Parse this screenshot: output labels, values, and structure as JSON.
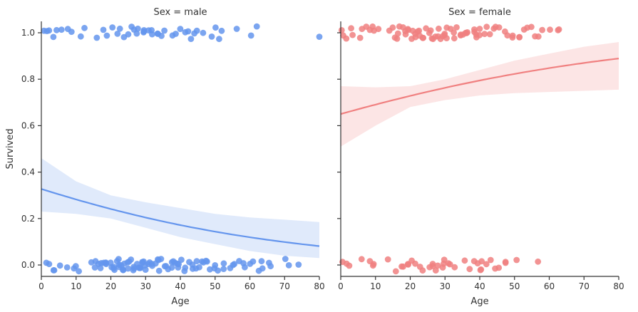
{
  "chart_data": {
    "type": "scatter",
    "ylabel": "Survived",
    "xlabel": "Age",
    "xlim": [
      0,
      80
    ],
    "ylim": [
      -0.05,
      1.05
    ],
    "xticks": [
      0,
      10,
      20,
      30,
      40,
      50,
      60,
      70,
      80
    ],
    "yticks": [
      0.0,
      0.2,
      0.4,
      0.6,
      0.8,
      1.0
    ],
    "ytick_labels": [
      "0.0",
      "0.2",
      "0.4",
      "0.6",
      "0.8",
      "1.0"
    ],
    "grid": false,
    "facets": [
      {
        "title": "Sex = male",
        "color": "#6495ED",
        "band_color": "#dbe6fa",
        "fit": {
          "intercept": -0.72,
          "slope": -0.0213
        },
        "band": {
          "x": [
            0,
            10,
            20,
            30,
            40,
            50,
            60,
            70,
            80
          ],
          "lower": [
            0.23,
            0.22,
            0.2,
            0.16,
            0.12,
            0.09,
            0.06,
            0.04,
            0.03
          ],
          "upper": [
            0.46,
            0.36,
            0.3,
            0.27,
            0.245,
            0.22,
            0.205,
            0.195,
            0.185
          ]
        },
        "survived_ages": [
          1,
          1,
          2,
          3,
          4,
          6,
          8,
          9,
          11,
          12,
          16,
          18,
          19,
          20,
          22,
          23,
          24,
          25,
          26,
          27,
          27,
          28,
          29,
          30,
          30,
          31,
          32,
          32,
          33,
          34,
          35,
          36,
          38,
          39,
          40,
          41,
          42,
          43,
          44,
          45,
          46,
          49,
          50,
          51,
          52,
          56,
          60,
          62,
          80
        ],
        "died_ages": [
          1,
          2,
          3,
          4,
          5,
          7,
          9,
          10,
          11,
          14,
          15,
          16,
          16,
          17,
          17,
          18,
          18,
          19,
          19,
          20,
          20,
          21,
          21,
          21,
          22,
          22,
          22,
          23,
          23,
          23,
          24,
          24,
          24,
          25,
          25,
          25,
          26,
          26,
          26,
          27,
          27,
          28,
          28,
          28,
          29,
          29,
          29,
          30,
          30,
          30,
          31,
          31,
          32,
          32,
          33,
          33,
          34,
          34,
          35,
          35,
          36,
          36,
          37,
          37,
          38,
          38,
          39,
          39,
          40,
          40,
          41,
          41,
          42,
          43,
          44,
          44,
          45,
          45,
          46,
          47,
          47,
          48,
          49,
          50,
          50,
          51,
          52,
          53,
          54,
          55,
          56,
          57,
          58,
          59,
          60,
          61,
          62,
          63,
          64,
          65,
          66,
          70,
          71,
          74
        ]
      },
      {
        "title": "Sex = female",
        "color": "#F08080",
        "band_color": "#fbe1e1",
        "fit": {
          "intercept": 0.62,
          "slope": 0.0183
        },
        "band": {
          "x": [
            0,
            10,
            20,
            30,
            40,
            50,
            60,
            70,
            80
          ],
          "lower": [
            0.51,
            0.6,
            0.68,
            0.71,
            0.73,
            0.74,
            0.745,
            0.75,
            0.755
          ],
          "upper": [
            0.77,
            0.765,
            0.77,
            0.8,
            0.84,
            0.88,
            0.91,
            0.94,
            0.96
          ]
        },
        "survived_ages": [
          0,
          1,
          2,
          3,
          4,
          5,
          6,
          7,
          8,
          9,
          10,
          11,
          14,
          15,
          16,
          16,
          17,
          17,
          18,
          18,
          19,
          19,
          20,
          20,
          21,
          21,
          22,
          22,
          23,
          23,
          24,
          24,
          25,
          25,
          26,
          26,
          27,
          27,
          28,
          28,
          29,
          29,
          30,
          30,
          31,
          31,
          32,
          32,
          33,
          33,
          34,
          35,
          35,
          36,
          36,
          37,
          38,
          38,
          39,
          39,
          40,
          40,
          41,
          42,
          43,
          44,
          45,
          45,
          47,
          48,
          49,
          50,
          51,
          52,
          53,
          54,
          55,
          56,
          57,
          58,
          60,
          62,
          63
        ],
        "died_ages": [
          1,
          2,
          3,
          6,
          8,
          9,
          10,
          14,
          16,
          18,
          18,
          19,
          20,
          21,
          22,
          23,
          24,
          25,
          26,
          26,
          27,
          28,
          29,
          30,
          30,
          31,
          32,
          33,
          36,
          37,
          38,
          39,
          40,
          40,
          41,
          42,
          43,
          44,
          45,
          47,
          48,
          50,
          57
        ]
      }
    ]
  }
}
